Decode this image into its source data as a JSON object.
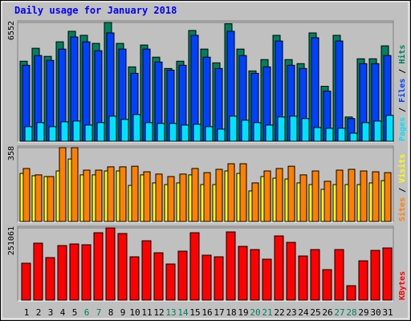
{
  "title": "Daily usage for January 2018",
  "legend_separator": " / ",
  "chart_data": [
    {
      "type": "bar",
      "ylim": [
        0,
        6552
      ],
      "yticks": [
        6552
      ],
      "series": [
        {
          "name": "Pages",
          "color": "#00e0ff",
          "values": [
            803,
            1026,
            803,
            1070,
            1115,
            892,
            1026,
            1383,
            1204,
            1472,
            1026,
            981,
            981,
            892,
            937,
            803,
            669,
            1383,
            1160,
            1026,
            892,
            1338,
            1383,
            1249,
            758,
            714,
            714,
            446,
            1026,
            1115,
            1427
          ]
        },
        {
          "name": "Files",
          "color": "#0040ff",
          "values": [
            4192,
            4728,
            4460,
            5084,
            5753,
            5486,
            4995,
            5976,
            5084,
            3746,
            5084,
            4371,
            3925,
            4192,
            5843,
            4638,
            4014,
            6066,
            4728,
            3746,
            4103,
            5530,
            4192,
            4014,
            5709,
            2765,
            5530,
            1249,
            4282,
            4282,
            4728
          ]
        },
        {
          "name": "Hits",
          "color": "#00805c",
          "values": [
            4415,
            5129,
            4683,
            5486,
            6066,
            5843,
            5397,
            6552,
            5397,
            4103,
            5307,
            4638,
            4014,
            4415,
            6110,
            5084,
            4326,
            6480,
            5084,
            3880,
            4505,
            5843,
            4505,
            4282,
            5976,
            3033,
            5843,
            1338,
            4549,
            4549,
            5263
          ]
        }
      ]
    },
    {
      "type": "bar",
      "ylim": [
        0,
        358
      ],
      "yticks": [
        358
      ],
      "series": [
        {
          "name": "Sites",
          "color": "#ff8000",
          "values": [
            257,
            226,
            218,
            358,
            358,
            249,
            249,
            265,
            265,
            268,
            241,
            230,
            218,
            230,
            257,
            237,
            253,
            280,
            280,
            187,
            245,
            257,
            268,
            226,
            245,
            195,
            249,
            253,
            245,
            241,
            237
          ]
        },
        {
          "name": "Visits",
          "color": "#ffff00",
          "values": [
            233,
            222,
            218,
            245,
            303,
            226,
            226,
            245,
            245,
            175,
            226,
            187,
            179,
            187,
            226,
            179,
            179,
            245,
            233,
            148,
            218,
            210,
            206,
            187,
            179,
            156,
            179,
            179,
            179,
            187,
            198
          ]
        }
      ]
    },
    {
      "type": "bar",
      "ylim": [
        0,
        251061
      ],
      "yticks": [
        251061
      ],
      "categories": [
        "1",
        "2",
        "3",
        "4",
        "5",
        "6",
        "7",
        "8",
        "9",
        "10",
        "11",
        "12",
        "13",
        "14",
        "15",
        "16",
        "17",
        "18",
        "19",
        "20",
        "21",
        "22",
        "23",
        "24",
        "25",
        "26",
        "27",
        "28",
        "29",
        "30",
        "31"
      ],
      "category_colors": [
        "#000000",
        "#000000",
        "#000000",
        "#000000",
        "#000000",
        "#00805c",
        "#00805c",
        "#000000",
        "#000000",
        "#000000",
        "#000000",
        "#000000",
        "#00805c",
        "#00805c",
        "#000000",
        "#000000",
        "#000000",
        "#000000",
        "#000000",
        "#00805c",
        "#00805c",
        "#000000",
        "#000000",
        "#000000",
        "#000000",
        "#000000",
        "#00805c",
        "#00805c",
        "#000000",
        "#000000",
        "#000000"
      ],
      "series": [
        {
          "name": "KBytes",
          "color": "#ff0000",
          "values": [
            128340,
            198090,
            147870,
            189720,
            195300,
            192510,
            234360,
            251061,
            231570,
            150660,
            206460,
            164610,
            125550,
            170190,
            234360,
            156240,
            150660,
            237150,
            186930,
            175770,
            142290,
            223200,
            200880,
            153450,
            175770,
            106020,
            175770,
            50220,
            136710,
            172980,
            181350
          ]
        }
      ]
    }
  ]
}
